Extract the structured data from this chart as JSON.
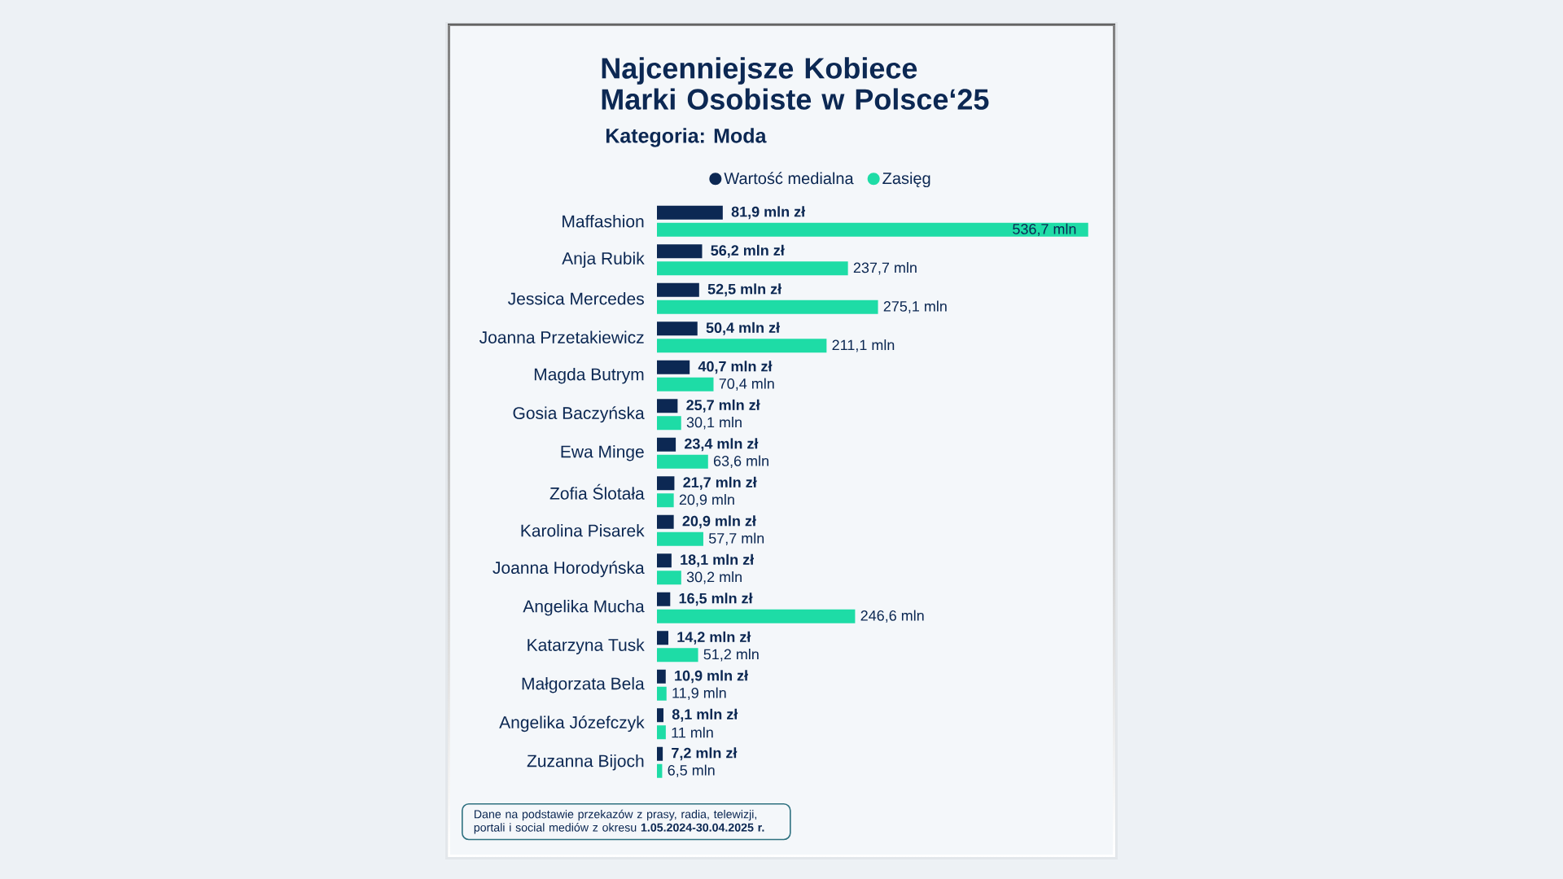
{
  "chart_data": {
    "type": "bar",
    "orientation": "horizontal",
    "title": "Najcenniejsze Kobiece Marki Osobiste w Polsce‘25",
    "subtitle": "Kategoria: Moda",
    "categories": [
      "Maffashion",
      "Anja Rubik",
      "Jessica Mercedes",
      "Joanna Przetakiewicz",
      "Magda Butrym",
      "Gosia Baczyńska",
      "Ewa Minge",
      "Zofia Ślotała",
      "Karolina Pisarek",
      "Joanna Horodyńska",
      "Angelika Mucha",
      "Katarzyna Tusk",
      "Małgorzata Bela",
      "Angelika Józefczyk",
      "Zuzanna Bijoch"
    ],
    "series": [
      {
        "name": "Wartość medialna",
        "color": "#0c2853",
        "values": [
          81.9,
          56.2,
          52.5,
          50.4,
          40.7,
          25.7,
          23.4,
          21.7,
          20.9,
          18.1,
          16.5,
          14.2,
          10.9,
          8.1,
          7.2
        ],
        "value_labels": [
          "81,9 mln zł",
          "56,2 mln zł",
          "52,5 mln zł",
          "50,4 mln zł",
          "40,7 mln zł",
          "25,7 mln zł",
          "23,4 mln zł",
          "21,7 mln zł",
          "20,9 mln zł",
          "18,1 mln zł",
          "16,5 mln zł",
          "14,2 mln zł",
          "10,9 mln zł",
          "8,1 mln zł",
          "7,2 mln zł"
        ]
      },
      {
        "name": "Zasięg",
        "color": "#1edca6",
        "values": [
          536.7,
          237.7,
          275.1,
          211.1,
          70.4,
          30.1,
          63.6,
          20.9,
          57.7,
          30.2,
          246.6,
          51.2,
          11.9,
          11,
          6.5
        ],
        "value_labels": [
          "536,7 mln",
          "237,7 mln",
          "275,1 mln",
          "211,1 mln",
          "70,4 mln",
          "30,1 mln",
          "63,6 mln",
          "20,9 mln",
          "57,7 mln",
          "30,2 mln",
          "246,6 mln",
          "51,2 mln",
          "11,9 mln",
          "11 mln",
          "6,5 mln"
        ]
      }
    ],
    "xlim": [
      0,
      540
    ],
    "legend": "top",
    "tick_labels": "y",
    "annotations": [
      "Dane na podstawie przekazów z prasy, radia, telewizji, portali i social mediów z okresu **1.05.2024-30.04.2025 r.**"
    ]
  }
}
